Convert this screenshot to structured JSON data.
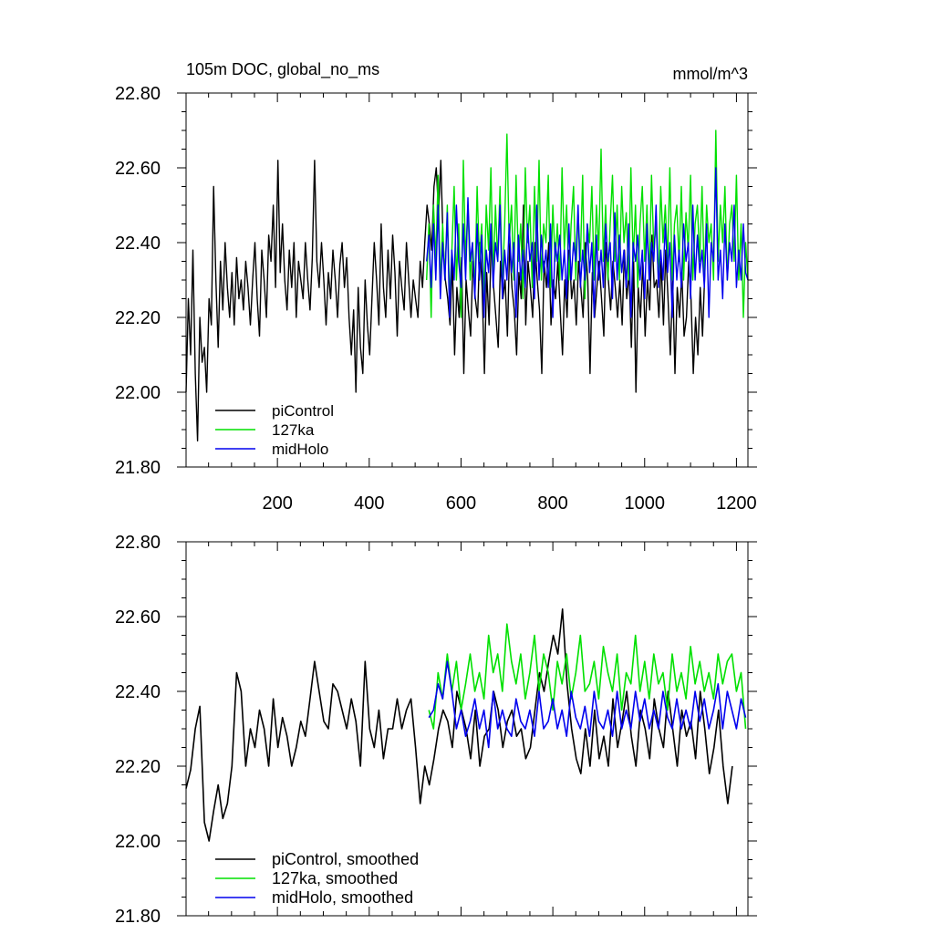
{
  "chart_data": [
    {
      "type": "line",
      "title": "105m DOC, global_no_ms",
      "units": "mmol/m^3",
      "xlabel": "",
      "ylabel": "",
      "xlim": [
        1,
        1225
      ],
      "ylim": [
        21.8,
        22.8
      ],
      "x_ticks": [
        200,
        400,
        600,
        800,
        1000,
        1200
      ],
      "y_ticks": [
        21.8,
        22.0,
        22.2,
        22.4,
        22.6,
        22.8
      ],
      "y_tick_labels": [
        "21.80",
        "22.00",
        "22.20",
        "22.40",
        "22.60",
        "22.80"
      ],
      "x_tick_labels": [
        "200",
        "400",
        "600",
        "800",
        "1000",
        "1200"
      ],
      "legend_position": "bottom-left",
      "grid": false,
      "series": [
        {
          "name": "piControl",
          "color": "#000000",
          "x_start": 1,
          "x_end": 1200,
          "x_step": 5,
          "y": [
            22.0,
            22.25,
            22.1,
            22.38,
            22.05,
            21.87,
            22.2,
            22.08,
            22.12,
            22.0,
            22.25,
            22.18,
            22.55,
            22.3,
            22.12,
            22.35,
            22.22,
            22.4,
            22.28,
            22.2,
            22.32,
            22.18,
            22.36,
            22.25,
            22.3,
            22.22,
            22.35,
            22.28,
            22.18,
            22.3,
            22.4,
            22.25,
            22.15,
            22.38,
            22.3,
            22.2,
            22.42,
            22.35,
            22.5,
            22.28,
            22.62,
            22.32,
            22.45,
            22.3,
            22.22,
            22.38,
            22.28,
            22.4,
            22.2,
            22.35,
            22.3,
            22.25,
            22.4,
            22.3,
            22.22,
            22.36,
            22.62,
            22.35,
            22.28,
            22.4,
            22.3,
            22.18,
            22.32,
            22.25,
            22.38,
            22.3,
            22.2,
            22.34,
            22.4,
            22.28,
            22.36,
            22.2,
            22.1,
            22.22,
            22.0,
            22.28,
            22.12,
            22.05,
            22.3,
            22.18,
            22.1,
            22.25,
            22.4,
            22.3,
            22.18,
            22.45,
            22.28,
            22.2,
            22.38,
            22.25,
            22.42,
            22.32,
            22.15,
            22.35,
            22.28,
            22.22,
            22.4,
            22.3,
            22.2,
            22.3,
            22.25,
            22.2,
            22.35,
            22.28,
            22.4,
            22.5,
            22.45,
            22.38,
            22.55,
            22.6,
            22.48,
            22.62,
            22.4,
            22.3,
            22.25,
            22.18,
            22.35,
            22.1,
            22.28,
            22.2,
            22.36,
            22.05,
            22.3,
            22.22,
            22.15,
            22.35,
            22.25,
            22.2,
            22.4,
            22.28,
            22.05,
            22.32,
            22.18,
            22.42,
            22.28,
            22.2,
            22.12,
            22.35,
            22.25,
            22.3,
            22.15,
            22.4,
            22.28,
            22.22,
            22.1,
            22.32,
            22.25,
            22.5,
            22.18,
            22.35,
            22.28,
            22.2,
            22.4,
            22.3,
            22.22,
            22.05,
            22.35,
            22.28,
            22.4,
            22.18,
            22.3,
            22.25,
            22.35,
            22.22,
            22.1,
            22.3,
            22.2,
            22.38,
            22.25,
            22.3,
            22.18,
            22.35,
            22.28,
            22.2,
            22.4,
            22.3,
            22.05,
            22.32,
            22.2,
            22.28,
            22.35,
            22.25,
            22.15,
            22.4,
            22.3,
            22.22,
            22.35,
            22.28,
            22.2,
            22.3,
            22.18,
            22.38,
            22.25,
            22.32,
            22.12,
            22.35,
            22.0,
            22.28,
            22.2,
            22.35,
            22.15,
            22.3,
            22.22,
            22.42,
            22.28,
            22.3,
            22.2,
            22.35,
            22.18,
            22.38,
            22.25,
            22.1,
            22.3,
            22.05,
            22.28,
            22.2,
            22.32,
            22.15,
            22.2,
            22.35,
            22.25,
            22.05,
            22.2,
            22.1,
            22.28,
            22.15,
            22.32
          ]
        },
        {
          "name": "127ka",
          "color": "#00e000",
          "x_start": 525,
          "x_end": 1225,
          "x_step": 5,
          "y": [
            22.3,
            22.45,
            22.2,
            22.5,
            22.35,
            22.58,
            22.28,
            22.45,
            22.3,
            22.5,
            22.25,
            22.38,
            22.55,
            22.3,
            22.45,
            22.2,
            22.62,
            22.35,
            22.5,
            22.3,
            22.4,
            22.28,
            22.55,
            22.35,
            22.45,
            22.25,
            22.5,
            22.38,
            22.6,
            22.3,
            22.5,
            22.35,
            22.55,
            22.28,
            22.45,
            22.69,
            22.4,
            22.5,
            22.3,
            22.58,
            22.35,
            22.45,
            22.25,
            22.6,
            22.4,
            22.5,
            22.28,
            22.55,
            22.35,
            22.62,
            22.3,
            22.45,
            22.4,
            22.58,
            22.28,
            22.5,
            22.35,
            22.45,
            22.3,
            22.6,
            22.38,
            22.5,
            22.3,
            22.45,
            22.55,
            22.3,
            22.48,
            22.35,
            22.58,
            22.25,
            22.45,
            22.4,
            22.55,
            22.3,
            22.5,
            22.38,
            22.65,
            22.35,
            22.5,
            22.3,
            22.45,
            22.58,
            22.35,
            22.5,
            22.3,
            22.55,
            22.4,
            22.48,
            22.3,
            22.6,
            22.35,
            22.5,
            22.28,
            22.45,
            22.55,
            22.35,
            22.5,
            22.3,
            22.58,
            22.38,
            22.45,
            22.3,
            22.55,
            22.4,
            22.5,
            22.35,
            22.6,
            22.3,
            22.45,
            22.5,
            22.35,
            22.55,
            22.3,
            22.48,
            22.38,
            22.58,
            22.3,
            22.45,
            22.5,
            22.35,
            22.55,
            22.3,
            22.5,
            22.4,
            22.45,
            22.3,
            22.7,
            22.35,
            22.5,
            22.4,
            22.55,
            22.3,
            22.45,
            22.5,
            22.35,
            22.58,
            22.3,
            22.45,
            22.2,
            22.4,
            22.3
          ]
        },
        {
          "name": "midHolo",
          "color": "#0000ee",
          "x_start": 525,
          "x_end": 1225,
          "x_step": 5,
          "y": [
            22.35,
            22.42,
            22.28,
            22.45,
            22.3,
            22.5,
            22.25,
            22.4,
            22.3,
            22.48,
            22.2,
            22.38,
            22.3,
            22.5,
            22.35,
            22.28,
            22.45,
            22.3,
            22.52,
            22.35,
            22.4,
            22.25,
            22.45,
            22.3,
            22.42,
            22.2,
            22.38,
            22.32,
            22.45,
            22.28,
            22.4,
            22.35,
            22.5,
            22.25,
            22.38,
            22.3,
            22.45,
            22.32,
            22.4,
            22.2,
            22.42,
            22.3,
            22.38,
            22.28,
            22.45,
            22.35,
            22.4,
            22.25,
            22.5,
            22.3,
            22.42,
            22.32,
            22.38,
            22.28,
            22.45,
            22.2,
            22.4,
            22.35,
            22.42,
            22.3,
            22.38,
            22.25,
            22.45,
            22.3,
            22.4,
            22.35,
            22.5,
            22.28,
            22.38,
            22.3,
            22.45,
            22.32,
            22.4,
            22.2,
            22.42,
            22.3,
            22.38,
            22.28,
            22.45,
            22.35,
            22.4,
            22.25,
            22.48,
            22.3,
            22.42,
            22.32,
            22.38,
            22.28,
            22.45,
            22.2,
            22.4,
            22.35,
            22.42,
            22.3,
            22.38,
            22.25,
            22.45,
            22.3,
            22.4,
            22.35,
            22.5,
            22.28,
            22.38,
            22.3,
            22.45,
            22.32,
            22.4,
            22.2,
            22.42,
            22.3,
            22.38,
            22.28,
            22.45,
            22.35,
            22.4,
            22.25,
            22.5,
            22.3,
            22.42,
            22.32,
            22.38,
            22.28,
            22.45,
            22.2,
            22.4,
            22.35,
            22.6,
            22.3,
            22.38,
            22.25,
            22.45,
            22.3,
            22.4,
            22.35,
            22.5,
            22.28,
            22.38,
            22.3,
            22.45,
            22.32,
            22.3
          ]
        }
      ]
    },
    {
      "type": "line",
      "xlim": [
        1,
        1225
      ],
      "ylim": [
        21.8,
        22.8
      ],
      "y_ticks": [
        21.8,
        22.0,
        22.2,
        22.4,
        22.6,
        22.8
      ],
      "y_tick_labels": [
        "21.80",
        "22.00",
        "22.20",
        "22.40",
        "22.60",
        "22.80"
      ],
      "legend_position": "bottom-left",
      "grid": false,
      "series": [
        {
          "name": "piControl, smoothed",
          "color": "#000000",
          "x_start": 1,
          "x_end": 1200,
          "x_step": 10,
          "y": [
            22.14,
            22.19,
            22.3,
            22.36,
            22.05,
            22.0,
            22.08,
            22.15,
            22.06,
            22.1,
            22.2,
            22.45,
            22.4,
            22.2,
            22.3,
            22.25,
            22.35,
            22.3,
            22.2,
            22.38,
            22.25,
            22.33,
            22.28,
            22.2,
            22.25,
            22.32,
            22.28,
            22.38,
            22.48,
            22.4,
            22.32,
            22.3,
            22.42,
            22.4,
            22.35,
            22.3,
            22.38,
            22.32,
            22.2,
            22.48,
            22.3,
            22.25,
            22.35,
            22.22,
            22.3,
            22.3,
            22.38,
            22.3,
            22.35,
            22.38,
            22.25,
            22.1,
            22.2,
            22.15,
            22.22,
            22.3,
            22.35,
            22.32,
            22.25,
            22.4,
            22.35,
            22.3,
            22.22,
            22.35,
            22.2,
            22.28,
            22.3,
            22.4,
            22.35,
            22.25,
            22.32,
            22.35,
            22.28,
            22.3,
            22.22,
            22.25,
            22.35,
            22.45,
            22.4,
            22.48,
            22.55,
            22.5,
            22.62,
            22.42,
            22.3,
            22.22,
            22.18,
            22.3,
            22.2,
            22.35,
            22.22,
            22.28,
            22.2,
            22.38,
            22.25,
            22.32,
            22.4,
            22.28,
            22.2,
            22.35,
            22.3,
            22.22,
            22.38,
            22.3,
            22.25,
            22.4,
            22.3,
            22.2,
            22.35,
            22.28,
            22.32,
            22.22,
            22.4,
            22.3,
            22.18,
            22.25,
            22.35,
            22.2,
            22.1,
            22.2
          ]
        },
        {
          "name": "127ka, smoothed",
          "color": "#00e000",
          "x_start": 530,
          "x_end": 1220,
          "x_step": 10,
          "y": [
            22.35,
            22.3,
            22.45,
            22.38,
            22.5,
            22.4,
            22.48,
            22.35,
            22.42,
            22.5,
            22.4,
            22.45,
            22.38,
            22.55,
            22.45,
            22.5,
            22.4,
            22.58,
            22.48,
            22.42,
            22.5,
            22.38,
            22.45,
            22.55,
            22.4,
            22.5,
            22.45,
            22.35,
            22.48,
            22.42,
            22.5,
            22.38,
            22.45,
            22.55,
            22.4,
            22.42,
            22.48,
            22.38,
            22.52,
            22.45,
            22.4,
            22.5,
            22.35,
            22.45,
            22.42,
            22.55,
            22.4,
            22.48,
            22.38,
            22.5,
            22.42,
            22.45,
            22.35,
            22.5,
            22.4,
            22.45,
            22.38,
            22.52,
            22.42,
            22.48,
            22.4,
            22.45,
            22.38,
            22.5,
            22.42,
            22.48,
            22.5,
            22.4,
            22.45,
            22.3
          ]
        },
        {
          "name": "midHolo, smoothed",
          "color": "#0000ee",
          "x_start": 530,
          "x_end": 1220,
          "x_step": 10,
          "y": [
            22.33,
            22.35,
            22.42,
            22.38,
            22.48,
            22.4,
            22.3,
            22.35,
            22.28,
            22.32,
            22.38,
            22.3,
            22.35,
            22.25,
            22.4,
            22.3,
            22.35,
            22.3,
            22.28,
            22.38,
            22.32,
            22.3,
            22.35,
            22.28,
            22.4,
            22.3,
            22.32,
            22.38,
            22.3,
            22.35,
            22.28,
            22.4,
            22.33,
            22.3,
            22.36,
            22.28,
            22.4,
            22.32,
            22.3,
            22.35,
            22.28,
            22.4,
            22.3,
            22.35,
            22.3,
            22.4,
            22.32,
            22.38,
            22.3,
            22.35,
            22.3,
            22.4,
            22.33,
            22.3,
            22.38,
            22.3,
            22.35,
            22.3,
            22.4,
            22.32,
            22.38,
            22.3,
            22.35,
            22.42,
            22.3,
            22.4,
            22.35,
            22.3,
            22.38,
            22.33
          ]
        }
      ]
    }
  ]
}
